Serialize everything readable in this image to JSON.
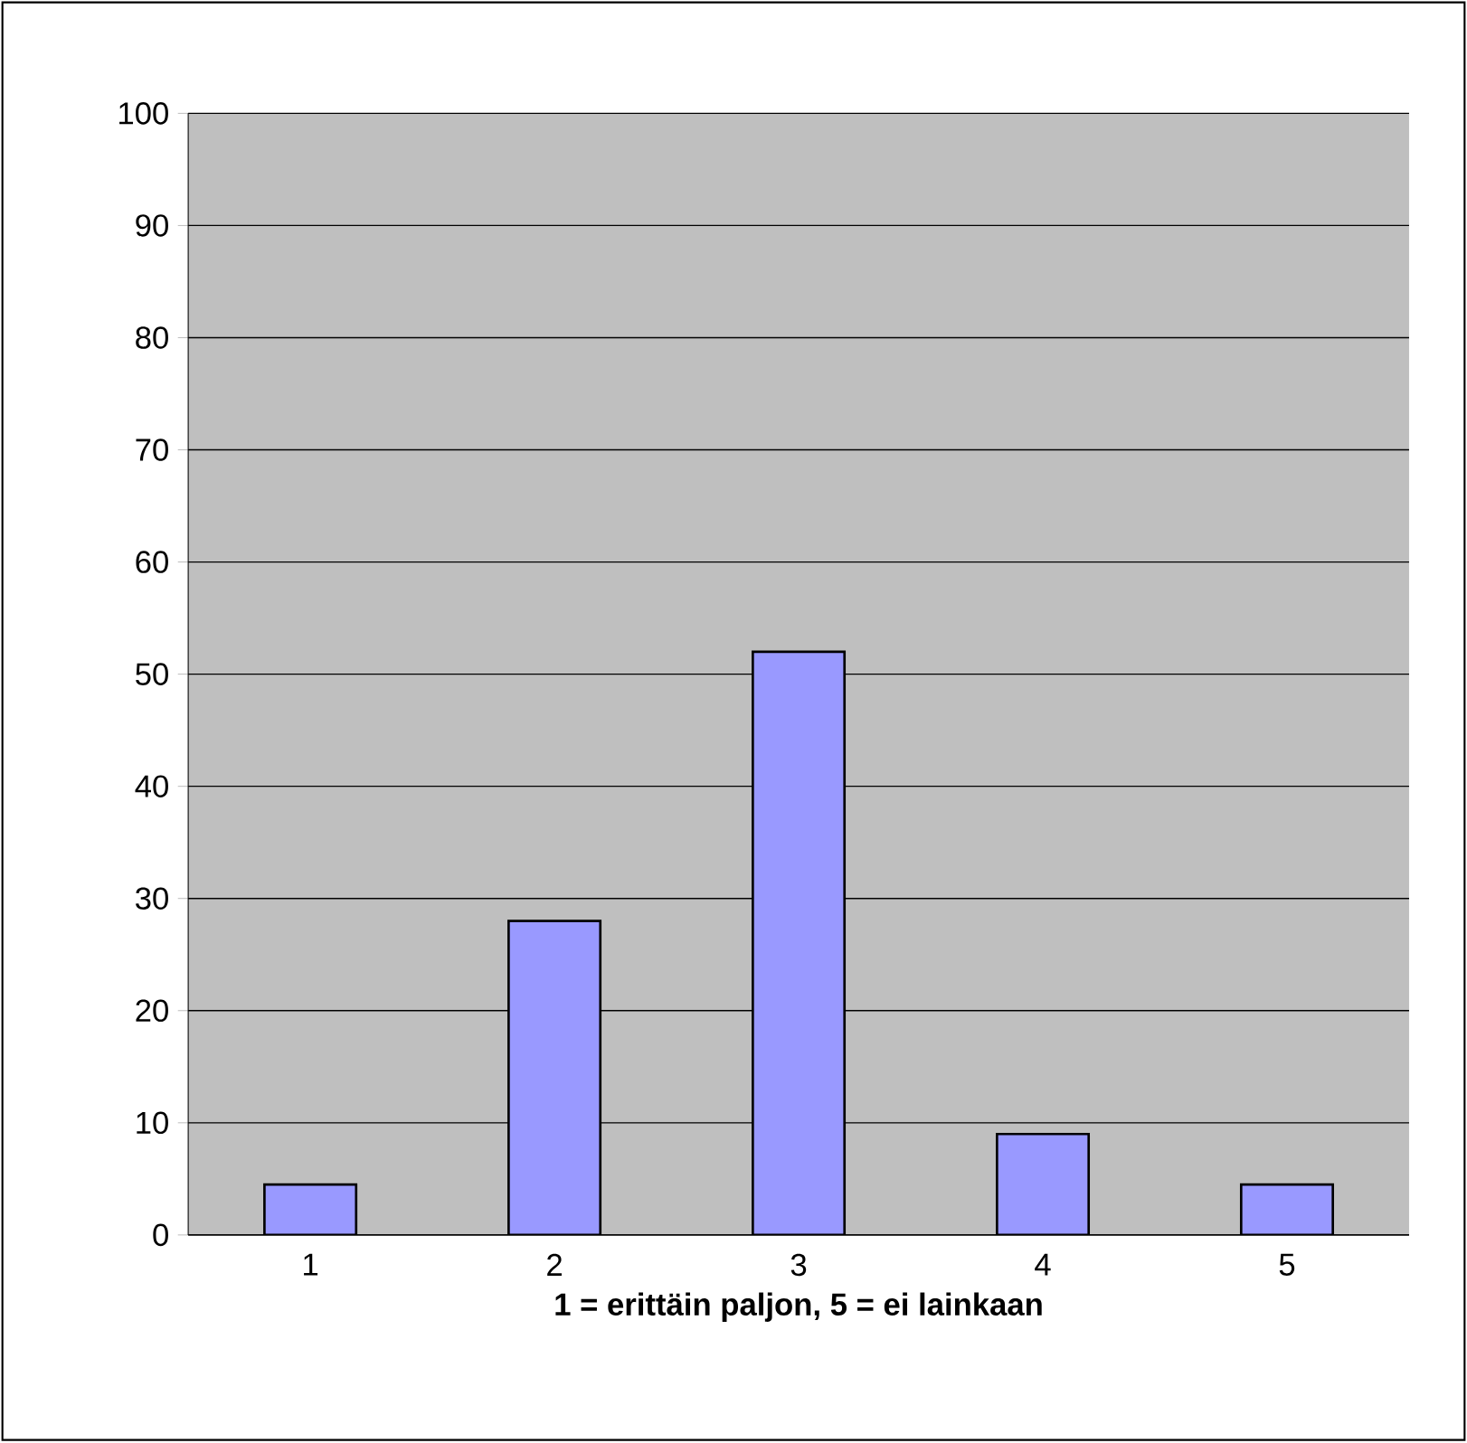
{
  "chart_data": {
    "type": "bar",
    "xlabel": "**1 = erittäin paljon, 5 = ei lainkaan**",
    "categories": [
      "1",
      "2",
      "3",
      "4",
      "5"
    ],
    "values": [
      4.5,
      28,
      52,
      9,
      4.5
    ],
    "color": "#9999ff",
    "ylim": [
      0,
      100
    ],
    "yticks": [
      0,
      10,
      20,
      30,
      40,
      50,
      60,
      70,
      80,
      90,
      100
    ],
    "grid": "y"
  }
}
